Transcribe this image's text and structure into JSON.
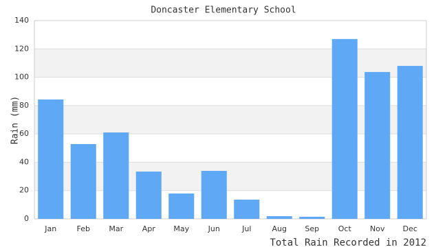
{
  "chart_data": {
    "type": "bar",
    "title": "Doncaster Elementary School",
    "y_label": "Rain (mm)",
    "x_label": "Total Rain Recorded in 2012",
    "categories": [
      "Jan",
      "Feb",
      "Mar",
      "Apr",
      "May",
      "Jun",
      "Jul",
      "Aug",
      "Sep",
      "Oct",
      "Nov",
      "Dec"
    ],
    "values": [
      84.3,
      52.8,
      61,
      33.4,
      17.9,
      33.9,
      13.6,
      1.9,
      1.5,
      127,
      103.7,
      108
    ],
    "color": "#5fa8f5",
    "ylim": [
      0,
      140
    ],
    "yticks": [
      0,
      20,
      40,
      60,
      80,
      100,
      120,
      140
    ],
    "grid": true
  }
}
